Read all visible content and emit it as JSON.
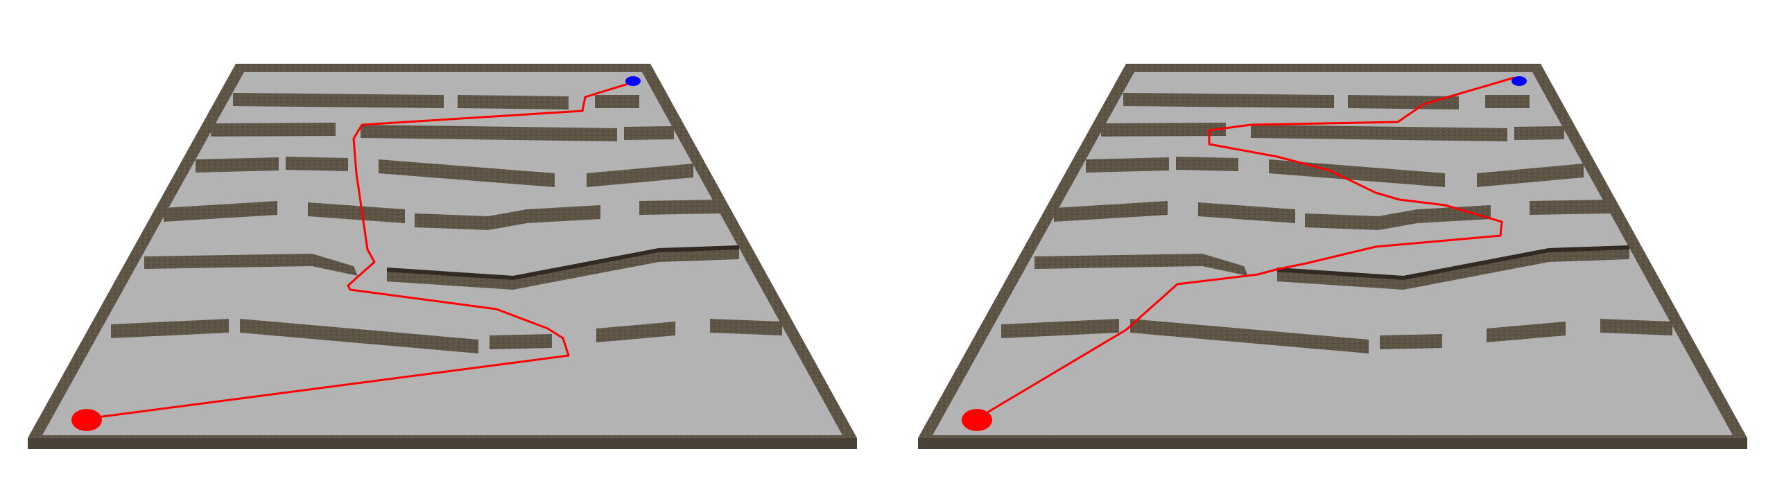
{
  "colors": {
    "background": "#ffffff",
    "floor": "#b3b3b3",
    "border_top": "#5e5445",
    "border_front": "#4a4236",
    "wall_top": "#5e5445",
    "wall_front": "#4a4236",
    "wall_dark": "#322a22",
    "path": "#ff0000",
    "start_marker": "#ff0000",
    "goal_marker": "#0000ff"
  },
  "panels": [
    {
      "name": "left-maze-panel",
      "path_label": "red-path"
    },
    {
      "name": "right-maze-panel",
      "path_label": "red-path"
    }
  ]
}
